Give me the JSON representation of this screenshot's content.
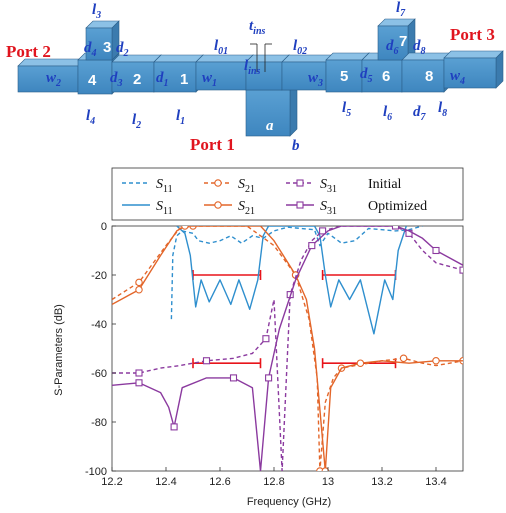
{
  "diagram": {
    "ports": {
      "p1": "Port 1",
      "p2": "Port 2",
      "p3": "Port 3"
    },
    "resonators": [
      "1",
      "2",
      "3",
      "4",
      "5",
      "6",
      "7",
      "8"
    ],
    "labels": {
      "l3": [
        "l",
        "3"
      ],
      "d4": [
        "d",
        "4"
      ],
      "d2": [
        "d",
        "2"
      ],
      "w2": [
        "w",
        "2"
      ],
      "d3": [
        "d",
        "3"
      ],
      "d1": [
        "d",
        "1"
      ],
      "w1": [
        "w",
        "1"
      ],
      "l01": [
        "l",
        "01"
      ],
      "tins": [
        "t",
        "ins"
      ],
      "lins": [
        "l",
        "ins"
      ],
      "l02": [
        "l",
        "02"
      ],
      "w3": [
        "w",
        "3"
      ],
      "d5": [
        "d",
        "5"
      ],
      "l7": [
        "l",
        "7"
      ],
      "d6": [
        "d",
        "6"
      ],
      "d8": [
        "d",
        "8"
      ],
      "w4": [
        "w",
        "4"
      ],
      "l4": [
        "l",
        "4"
      ],
      "l2": [
        "l",
        "2"
      ],
      "l1": [
        "l",
        "1"
      ],
      "a": [
        "a",
        ""
      ],
      "b": [
        "b",
        ""
      ],
      "l5": [
        "l",
        "5"
      ],
      "l6": [
        "l",
        "6"
      ],
      "d7": [
        "d",
        "7"
      ],
      "l8": [
        "l",
        "8"
      ]
    },
    "colors": {
      "block_front": "#4f95c9",
      "block_top": "#8cc1e6",
      "block_side": "#3b7bae",
      "label": "#1f3fbf",
      "port": "#e0141e"
    }
  },
  "chart_data": {
    "type": "line",
    "xlabel": "Frequency (GHz)",
    "ylabel": "S-Parameters (dB)",
    "xlim": [
      12.2,
      13.5
    ],
    "ylim": [
      -100,
      0
    ],
    "xticks": [
      "12.2",
      "12.4",
      "12.6",
      "12.8",
      "13",
      "13.2",
      "13.4"
    ],
    "yticks": [
      "0",
      "-20",
      "-40",
      "-60",
      "-80",
      "-100"
    ],
    "legend": {
      "rows": [
        {
          "label": "Initial",
          "items": [
            {
              "sym": "S",
              "sub": "11"
            },
            {
              "sym": "S",
              "sub": "21"
            },
            {
              "sym": "S",
              "sub": "31"
            }
          ]
        },
        {
          "label": "Optimized",
          "items": [
            {
              "sym": "S",
              "sub": "11"
            },
            {
              "sym": "S",
              "sub": "21"
            },
            {
              "sym": "S",
              "sub": "31"
            }
          ]
        }
      ],
      "placement": "top"
    },
    "colors": {
      "S11": "#2f8fce",
      "S21": "#e3662a",
      "S31": "#8b3a9f",
      "spec": "#e8141a"
    },
    "spec_lines": [
      {
        "x": [
          12.5,
          12.75
        ],
        "y": -20
      },
      {
        "x": [
          12.98,
          13.25
        ],
        "y": -20
      },
      {
        "x": [
          12.5,
          12.75
        ],
        "y": -56
      },
      {
        "x": [
          12.98,
          13.25
        ],
        "y": -56
      }
    ],
    "series": [
      {
        "name": "S11",
        "group": "Initial",
        "style": "dashed",
        "marker": "none",
        "points": [
          [
            12.42,
            -38
          ],
          [
            12.425,
            -12
          ],
          [
            12.44,
            -4
          ],
          [
            12.46,
            -2
          ],
          [
            12.5,
            -3
          ],
          [
            12.52,
            -6
          ],
          [
            12.56,
            -7
          ],
          [
            12.6,
            -6
          ],
          [
            12.64,
            -4
          ],
          [
            12.68,
            -7
          ],
          [
            12.72,
            -4
          ],
          [
            12.76,
            -5
          ],
          [
            12.8,
            -2
          ],
          [
            12.85,
            -0.5
          ],
          [
            12.95,
            -1.5
          ],
          [
            12.97,
            -8
          ],
          [
            13.0,
            -3
          ],
          [
            13.05,
            -7
          ],
          [
            13.1,
            -6
          ],
          [
            13.15,
            -1
          ],
          [
            13.2,
            -1.5
          ],
          [
            13.25,
            -2
          ],
          [
            13.3,
            -1.5
          ],
          [
            13.35,
            0
          ]
        ]
      },
      {
        "name": "S11",
        "group": "Optimized",
        "style": "solid",
        "marker": "none",
        "points": [
          [
            12.44,
            0
          ],
          [
            12.47,
            -3
          ],
          [
            12.49,
            -12
          ],
          [
            12.51,
            -33
          ],
          [
            12.53,
            -22
          ],
          [
            12.56,
            -31
          ],
          [
            12.6,
            -22
          ],
          [
            12.64,
            -32
          ],
          [
            12.67,
            -22
          ],
          [
            12.71,
            -34
          ],
          [
            12.74,
            -22
          ],
          [
            12.76,
            -4
          ],
          [
            12.78,
            0
          ],
          [
            12.95,
            0
          ],
          [
            12.97,
            -4
          ],
          [
            12.99,
            -20
          ],
          [
            13.01,
            -33
          ],
          [
            13.04,
            -22
          ],
          [
            13.08,
            -30
          ],
          [
            13.12,
            -22
          ],
          [
            13.17,
            -44
          ],
          [
            13.21,
            -22
          ],
          [
            13.24,
            -30
          ],
          [
            13.26,
            -10
          ],
          [
            13.29,
            0
          ]
        ]
      },
      {
        "name": "S21",
        "group": "Initial",
        "style": "dashed",
        "marker": "circle",
        "points": [
          [
            12.2,
            -30
          ],
          [
            12.3,
            -23
          ],
          [
            12.4,
            -8
          ],
          [
            12.45,
            -1
          ],
          [
            12.5,
            0
          ],
          [
            12.7,
            0
          ],
          [
            12.8,
            -8
          ],
          [
            12.88,
            -20
          ],
          [
            12.93,
            -38
          ],
          [
            12.96,
            -62
          ],
          [
            12.97,
            -100
          ],
          [
            12.99,
            -72
          ],
          [
            13.02,
            -62
          ],
          [
            13.05,
            -58
          ],
          [
            13.1,
            -57
          ],
          [
            13.2,
            -55
          ],
          [
            13.28,
            -54
          ],
          [
            13.35,
            -56
          ],
          [
            13.4,
            -57
          ],
          [
            13.5,
            -55
          ]
        ]
      },
      {
        "name": "S21",
        "group": "Optimized",
        "style": "solid",
        "marker": "circle",
        "points": [
          [
            12.2,
            -32
          ],
          [
            12.3,
            -26
          ],
          [
            12.38,
            -12
          ],
          [
            12.44,
            -2
          ],
          [
            12.47,
            0
          ],
          [
            12.75,
            0
          ],
          [
            12.8,
            -6
          ],
          [
            12.88,
            -20
          ],
          [
            12.92,
            -30
          ],
          [
            12.95,
            -50
          ],
          [
            12.99,
            -100
          ],
          [
            13.01,
            -66
          ],
          [
            13.05,
            -58
          ],
          [
            13.12,
            -56
          ],
          [
            13.2,
            -55
          ],
          [
            13.3,
            -56
          ],
          [
            13.4,
            -55
          ],
          [
            13.5,
            -55
          ]
        ]
      },
      {
        "name": "S31",
        "group": "Initial",
        "style": "dashed",
        "marker": "square",
        "points": [
          [
            12.2,
            -60
          ],
          [
            12.3,
            -60
          ],
          [
            12.38,
            -58
          ],
          [
            12.45,
            -57
          ],
          [
            12.55,
            -55
          ],
          [
            12.65,
            -54
          ],
          [
            12.72,
            -52
          ],
          [
            12.77,
            -46
          ],
          [
            12.8,
            -30
          ],
          [
            12.83,
            -100
          ],
          [
            12.86,
            -28
          ],
          [
            12.9,
            -14
          ],
          [
            12.94,
            -6
          ],
          [
            12.98,
            -2
          ],
          [
            13.05,
            0
          ],
          [
            13.25,
            0
          ],
          [
            13.3,
            -3
          ],
          [
            13.35,
            -10
          ],
          [
            13.4,
            -15
          ],
          [
            13.5,
            -18
          ]
        ]
      },
      {
        "name": "S31",
        "group": "Optimized",
        "style": "solid",
        "marker": "square",
        "points": [
          [
            12.2,
            -65
          ],
          [
            12.3,
            -64
          ],
          [
            12.38,
            -68
          ],
          [
            12.41,
            -74
          ],
          [
            12.43,
            -82
          ],
          [
            12.46,
            -66
          ],
          [
            12.55,
            -62
          ],
          [
            12.65,
            -62
          ],
          [
            12.72,
            -66
          ],
          [
            12.75,
            -100
          ],
          [
            12.78,
            -62
          ],
          [
            12.82,
            -42
          ],
          [
            12.88,
            -22
          ],
          [
            12.94,
            -8
          ],
          [
            13.0,
            -2
          ],
          [
            13.05,
            0
          ],
          [
            13.25,
            0
          ],
          [
            13.3,
            -2
          ],
          [
            13.35,
            -5
          ],
          [
            13.4,
            -10
          ],
          [
            13.5,
            -16
          ]
        ]
      }
    ]
  }
}
